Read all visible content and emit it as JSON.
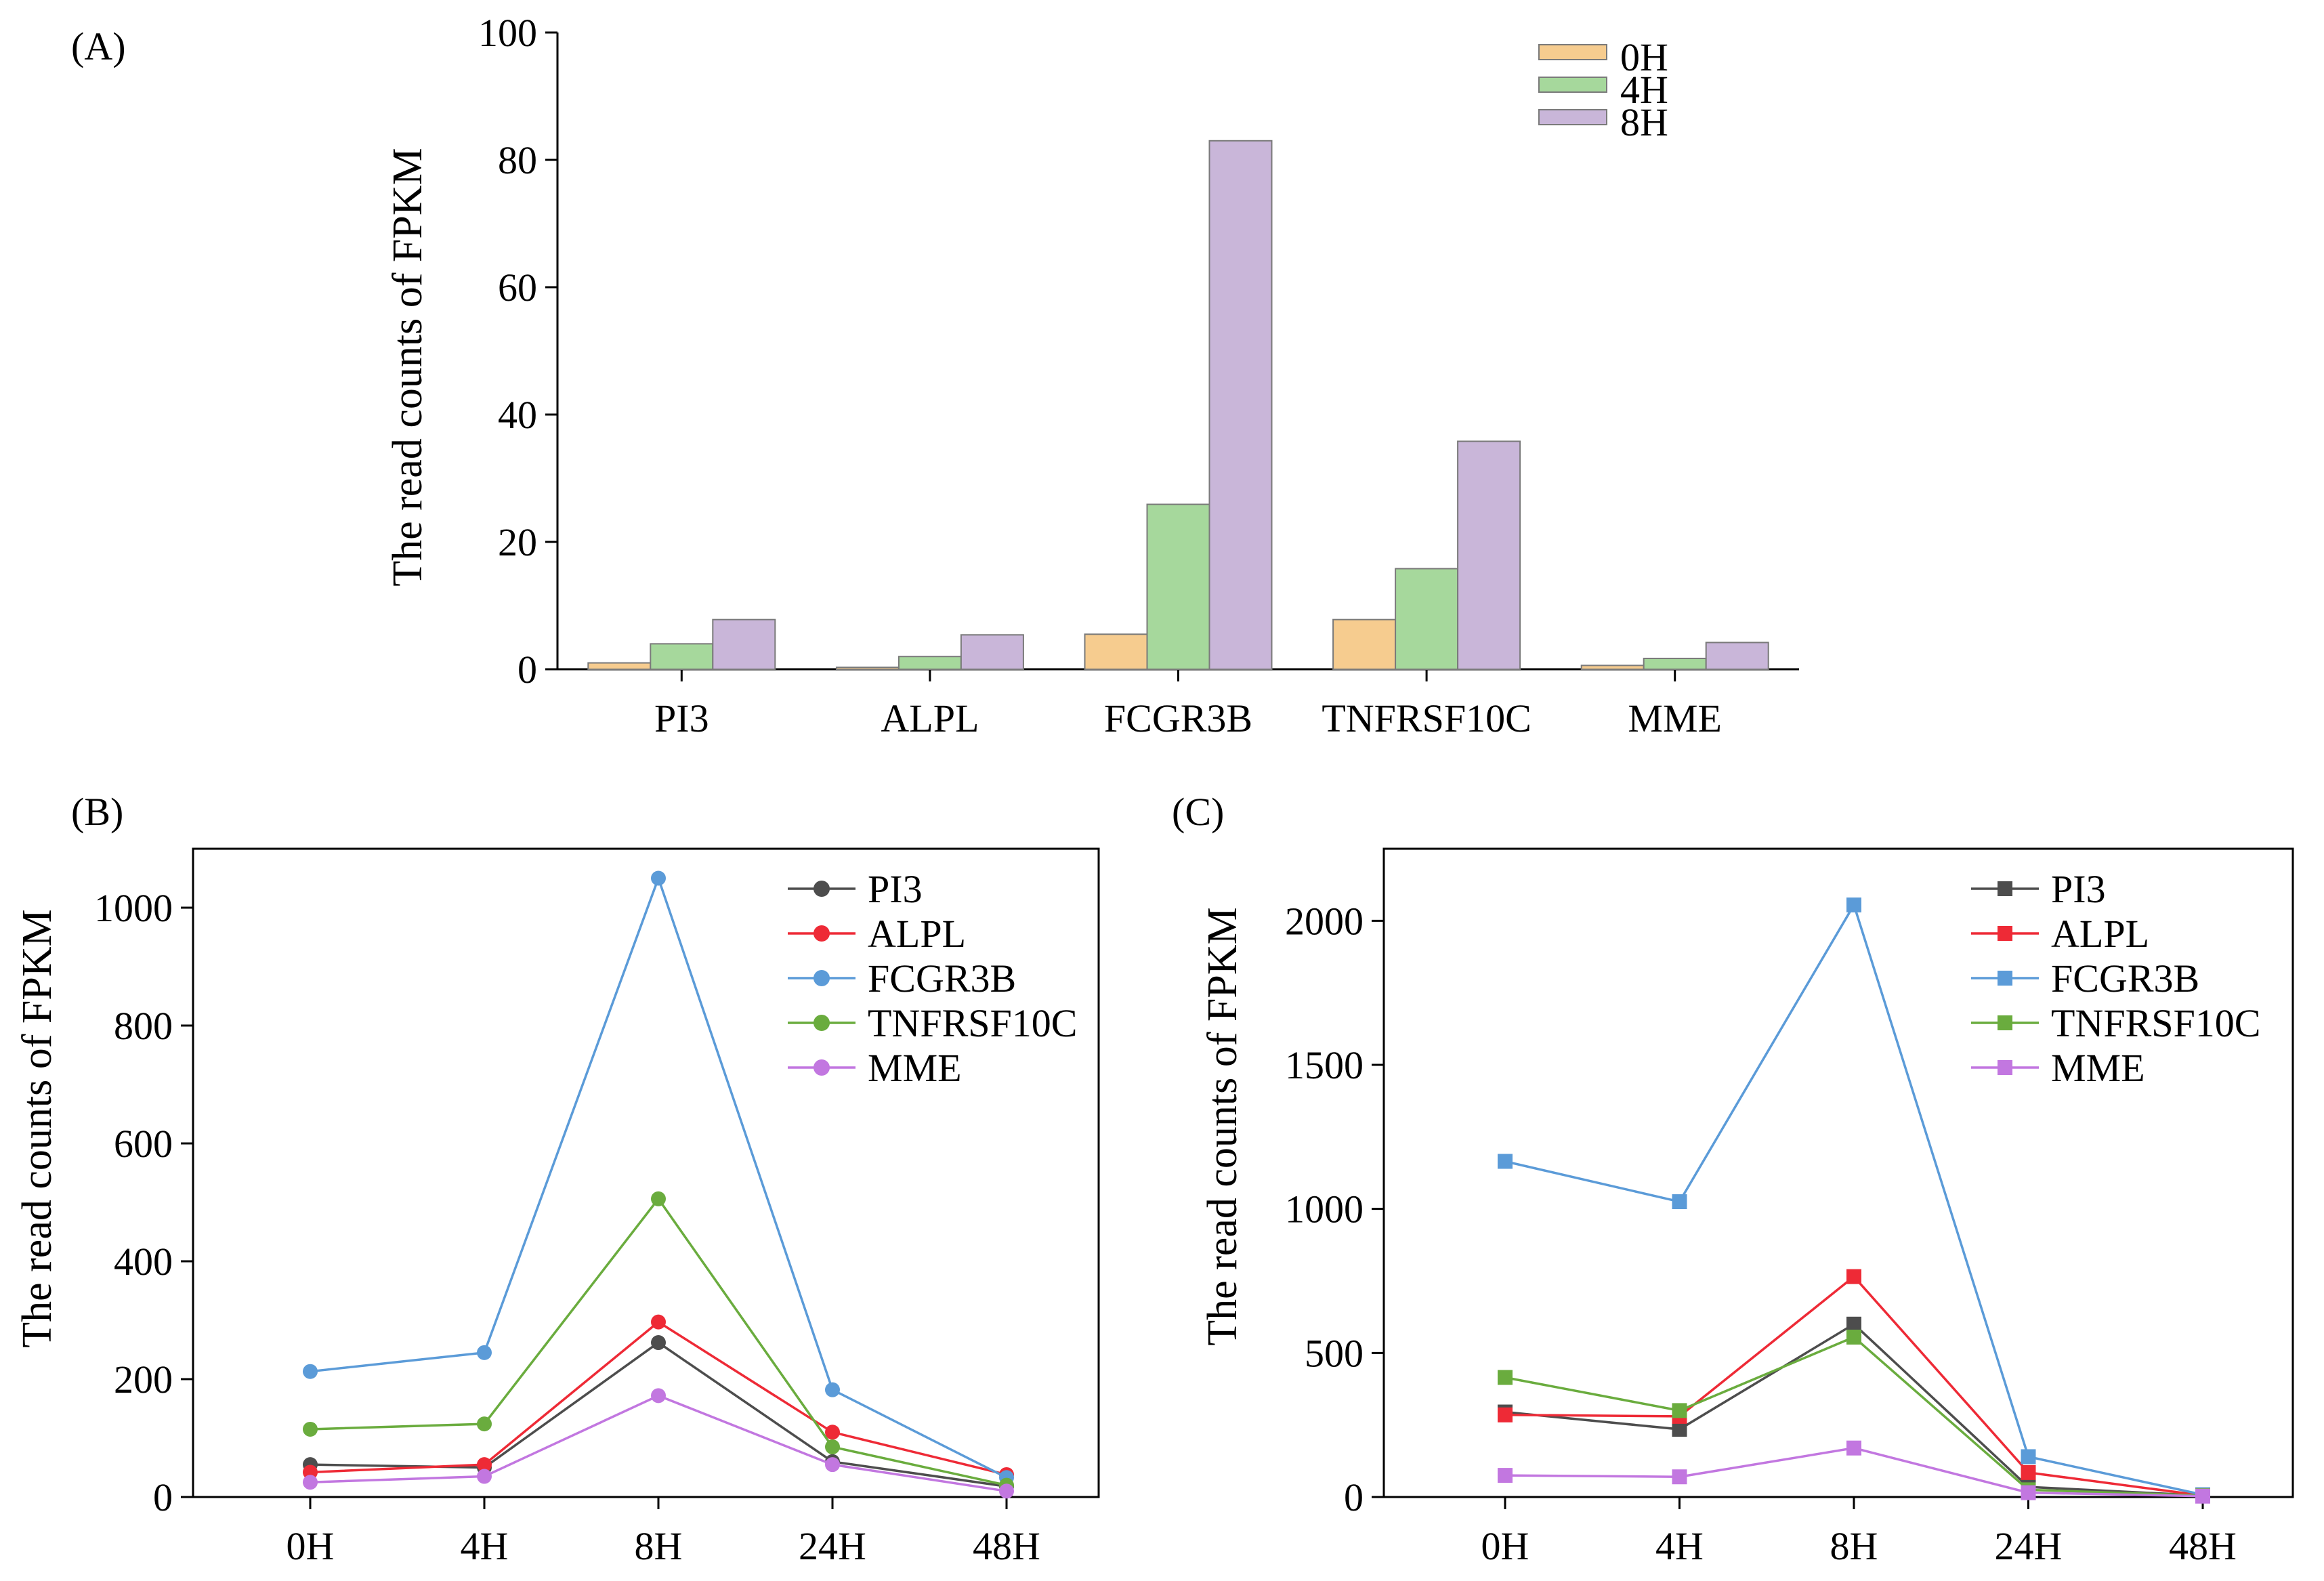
{
  "colors": {
    "bar_0H": "#f6cc8f",
    "bar_4H": "#a6d89c",
    "bar_8H": "#c9b6d9",
    "PI3": "#4d4d4d",
    "ALPL": "#ee2a36",
    "FCGR3B": "#5b9bd8",
    "TNFRSF10C": "#6aac3e",
    "MME": "#c277e0"
  },
  "chart_data": [
    {
      "panel": "(A)",
      "type": "bar",
      "categories": [
        "PI3",
        "ALPL",
        "FCGR3B",
        "TNFRSF10C",
        "MME"
      ],
      "series": [
        {
          "name": "0H",
          "values": [
            1.0,
            0.3,
            5.5,
            7.8,
            0.6
          ]
        },
        {
          "name": "4H",
          "values": [
            4.0,
            2.0,
            25.9,
            15.8,
            1.7
          ]
        },
        {
          "name": "8H",
          "values": [
            7.8,
            5.4,
            83.0,
            35.8,
            4.2
          ]
        }
      ],
      "ylabel": "The read counts of FPKM",
      "xlabel": "",
      "ylim": [
        0,
        100
      ],
      "yticks": [
        "0",
        "20",
        "40",
        "60",
        "80",
        "100"
      ],
      "grid": false,
      "legend": "top-right"
    },
    {
      "panel": "(B)",
      "type": "line",
      "marker": "circle",
      "categories": [
        "0H",
        "4H",
        "8H",
        "24H",
        "48H"
      ],
      "series": [
        {
          "name": "PI3",
          "values": [
            55,
            50,
            262,
            60,
            18
          ]
        },
        {
          "name": "ALPL",
          "values": [
            42,
            55,
            297,
            110,
            38
          ]
        },
        {
          "name": "FCGR3B",
          "values": [
            213,
            245,
            1050,
            182,
            33
          ]
        },
        {
          "name": "TNFRSF10C",
          "values": [
            115,
            124,
            506,
            85,
            20
          ]
        },
        {
          "name": "MME",
          "values": [
            25,
            35,
            172,
            55,
            10
          ]
        }
      ],
      "ylabel": "The read counts of FPKM",
      "xlabel": "",
      "ylim": [
        0,
        1100
      ],
      "yticks": [
        "0",
        "200",
        "400",
        "600",
        "800",
        "1000"
      ],
      "grid": false,
      "legend": "top-right"
    },
    {
      "panel": "(C)",
      "type": "line",
      "marker": "square",
      "categories": [
        "0H",
        "4H",
        "8H",
        "24H",
        "48H"
      ],
      "series": [
        {
          "name": "PI3",
          "values": [
            295,
            235,
            600,
            35,
            5
          ]
        },
        {
          "name": "ALPL",
          "values": [
            285,
            280,
            765,
            85,
            5
          ]
        },
        {
          "name": "FCGR3B",
          "values": [
            1165,
            1025,
            2055,
            140,
            8
          ]
        },
        {
          "name": "TNFRSF10C",
          "values": [
            415,
            300,
            555,
            25,
            5
          ]
        },
        {
          "name": "MME",
          "values": [
            75,
            70,
            170,
            15,
            3
          ]
        }
      ],
      "ylabel": "The read counts of FPKM",
      "xlabel": "",
      "ylim": [
        0,
        2250
      ],
      "yticks": [
        "0",
        "500",
        "1000",
        "1500",
        "2000"
      ],
      "grid": false,
      "legend": "top-right"
    }
  ]
}
